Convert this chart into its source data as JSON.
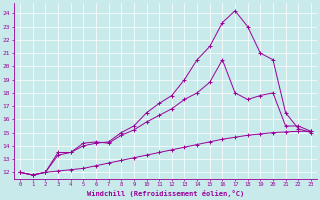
{
  "xlabel": "Windchill (Refroidissement éolien,°C)",
  "bg_color": "#c8eaea",
  "line_color": "#990099",
  "grid_color": "#aacccc",
  "xlim": [
    -0.5,
    23.5
  ],
  "ylim": [
    11.5,
    24.8
  ],
  "xticks": [
    0,
    1,
    2,
    3,
    4,
    5,
    6,
    7,
    8,
    9,
    10,
    11,
    12,
    13,
    14,
    15,
    16,
    17,
    18,
    19,
    20,
    21,
    22,
    23
  ],
  "yticks": [
    12,
    13,
    14,
    15,
    16,
    17,
    18,
    19,
    20,
    21,
    22,
    23,
    24
  ],
  "line1_x": [
    0,
    1,
    2,
    3,
    4,
    5,
    6,
    7,
    8,
    9,
    10,
    11,
    12,
    13,
    14,
    15,
    16,
    17,
    18,
    19,
    20,
    21,
    22,
    23
  ],
  "line1_y": [
    12,
    11.8,
    12.0,
    12.1,
    12.2,
    12.3,
    12.5,
    12.7,
    12.9,
    13.1,
    13.3,
    13.5,
    13.7,
    13.9,
    14.1,
    14.3,
    14.5,
    14.65,
    14.8,
    14.9,
    15.0,
    15.05,
    15.1,
    15.1
  ],
  "line2_x": [
    0,
    1,
    2,
    3,
    4,
    5,
    6,
    7,
    8,
    9,
    10,
    11,
    12,
    13,
    14,
    15,
    16,
    17,
    18,
    19,
    20,
    21,
    22,
    23
  ],
  "line2_y": [
    12,
    11.8,
    12.0,
    13.5,
    13.5,
    14.2,
    14.3,
    14.2,
    14.8,
    15.2,
    15.8,
    16.3,
    16.8,
    17.5,
    18.0,
    18.8,
    20.5,
    18.0,
    17.5,
    17.8,
    18.0,
    15.5,
    15.5,
    15.1
  ],
  "line3_x": [
    0,
    1,
    2,
    3,
    4,
    5,
    6,
    7,
    8,
    9,
    10,
    11,
    12,
    13,
    14,
    15,
    16,
    17,
    18,
    19,
    20,
    21,
    22,
    23
  ],
  "line3_y": [
    12,
    11.8,
    12.0,
    13.3,
    13.5,
    14.0,
    14.2,
    14.3,
    15.0,
    15.5,
    16.5,
    17.2,
    17.8,
    19.0,
    20.5,
    21.5,
    23.3,
    24.2,
    23.0,
    21.0,
    20.5,
    16.5,
    15.3,
    15.0
  ]
}
